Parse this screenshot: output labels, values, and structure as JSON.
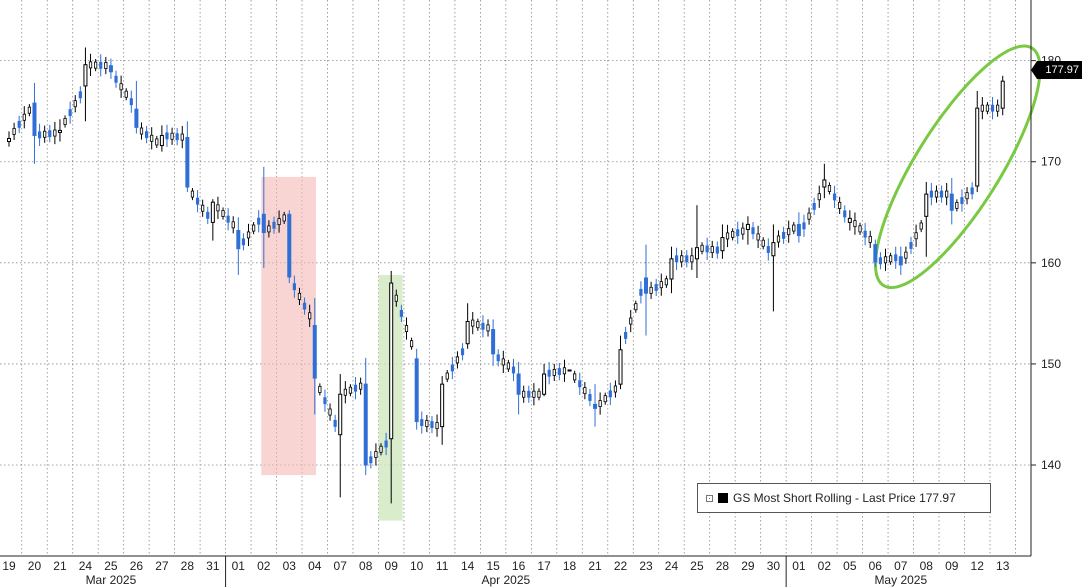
{
  "chart_data": {
    "type": "candlestick",
    "series": [
      {
        "name": "GS Most Short Rolling",
        "ohlc": [
          {
            "d": "19",
            "o": 172.0,
            "h": 173.0,
            "l": 171.5,
            "c": 172.3
          },
          {
            "d": "20",
            "o": 175.8,
            "h": 177.8,
            "l": 169.8,
            "c": 172.6
          },
          {
            "d": "21",
            "o": 172.9,
            "h": 174.2,
            "l": 172.0,
            "c": 173.1
          },
          {
            "d": "24",
            "o": 177.5,
            "h": 181.3,
            "l": 174.0,
            "c": 179.6
          },
          {
            "d": "25",
            "o": 179.5,
            "h": 180.2,
            "l": 178.2,
            "c": 178.9
          },
          {
            "d": "26",
            "o": 175.2,
            "h": 178.0,
            "l": 172.8,
            "c": 173.4
          },
          {
            "d": "27",
            "o": 171.6,
            "h": 173.6,
            "l": 171.0,
            "c": 172.6
          },
          {
            "d": "28",
            "o": 172.4,
            "h": 174.0,
            "l": 167.0,
            "c": 167.5
          },
          {
            "d": "31",
            "o": 164.0,
            "h": 166.3,
            "l": 162.2,
            "c": 166.0
          },
          {
            "d": "01",
            "o": 163.2,
            "h": 164.5,
            "l": 158.8,
            "c": 161.4
          },
          {
            "d": "02",
            "o": 164.8,
            "h": 169.5,
            "l": 159.5,
            "c": 163.0
          },
          {
            "d": "03",
            "o": 164.8,
            "h": 165.2,
            "l": 158.0,
            "c": 158.6
          },
          {
            "d": "04",
            "o": 153.8,
            "h": 156.5,
            "l": 145.0,
            "c": 148.6
          },
          {
            "d": "07",
            "o": 143.0,
            "h": 149.0,
            "l": 136.8,
            "c": 147.0
          },
          {
            "d": "08",
            "o": 148.0,
            "h": 150.6,
            "l": 139.0,
            "c": 140.0
          },
          {
            "d": "09",
            "o": 142.6,
            "h": 159.2,
            "l": 136.2,
            "c": 158.0
          },
          {
            "d": "10",
            "o": 150.5,
            "h": 151.5,
            "l": 143.5,
            "c": 144.3
          },
          {
            "d": "11",
            "o": 143.8,
            "h": 148.8,
            "l": 142.0,
            "c": 148.0
          },
          {
            "d": "14",
            "o": 152.0,
            "h": 156.0,
            "l": 151.5,
            "c": 154.2
          },
          {
            "d": "15",
            "o": 153.4,
            "h": 154.4,
            "l": 149.8,
            "c": 151.0
          },
          {
            "d": "16",
            "o": 149.0,
            "h": 150.2,
            "l": 145.0,
            "c": 147.0
          },
          {
            "d": "17",
            "o": 147.0,
            "h": 150.0,
            "l": 146.8,
            "c": 149.0
          },
          {
            "d": "18",
            "o": 149.4,
            "h": 149.4,
            "l": 149.4,
            "c": 149.4
          },
          {
            "d": "21",
            "o": 146.0,
            "h": 148.0,
            "l": 143.8,
            "c": 145.6
          },
          {
            "d": "22",
            "o": 148.0,
            "h": 152.8,
            "l": 147.5,
            "c": 151.4
          },
          {
            "d": "23",
            "o": 158.5,
            "h": 161.8,
            "l": 152.8,
            "c": 157.0
          },
          {
            "d": "24",
            "o": 158.4,
            "h": 161.6,
            "l": 157.0,
            "c": 160.4
          },
          {
            "d": "25",
            "o": 160.4,
            "h": 165.7,
            "l": 158.5,
            "c": 161.5
          },
          {
            "d": "28",
            "o": 161.2,
            "h": 163.8,
            "l": 160.4,
            "c": 162.5
          },
          {
            "d": "29",
            "o": 163.3,
            "h": 164.6,
            "l": 161.8,
            "c": 163.8
          },
          {
            "d": "30",
            "o": 160.7,
            "h": 163.8,
            "l": 155.2,
            "c": 162.0
          },
          {
            "d": "01",
            "o": 163.8,
            "h": 165.0,
            "l": 162.0,
            "c": 162.7
          },
          {
            "d": "02",
            "o": 167.5,
            "h": 169.8,
            "l": 166.4,
            "c": 168.2
          },
          {
            "d": "05",
            "o": 164.0,
            "h": 165.2,
            "l": 163.2,
            "c": 164.4
          },
          {
            "d": "06",
            "o": 161.8,
            "h": 162.3,
            "l": 159.6,
            "c": 160.1
          },
          {
            "d": "07",
            "o": 160.6,
            "h": 161.6,
            "l": 158.8,
            "c": 159.8
          },
          {
            "d": "08",
            "o": 164.6,
            "h": 168.0,
            "l": 160.6,
            "c": 166.8
          },
          {
            "d": "09",
            "o": 166.8,
            "h": 168.4,
            "l": 163.8,
            "c": 165.2
          },
          {
            "d": "12",
            "o": 167.6,
            "h": 177.0,
            "l": 167.0,
            "c": 175.3
          },
          {
            "d": "13",
            "o": 175.3,
            "h": 178.5,
            "l": 174.6,
            "c": 177.97
          }
        ]
      }
    ],
    "y_ticks": [
      "140",
      "150",
      "160",
      "170",
      "180"
    ],
    "ylim": [
      131,
      186
    ],
    "day_labels": [
      "19",
      "20",
      "21",
      "24",
      "25",
      "26",
      "27",
      "28",
      "31",
      "01",
      "02",
      "03",
      "04",
      "07",
      "08",
      "09",
      "10",
      "11",
      "14",
      "15",
      "16",
      "17",
      "18",
      "21",
      "22",
      "23",
      "24",
      "25",
      "28",
      "29",
      "30",
      "01",
      "02",
      "05",
      "06",
      "07",
      "08",
      "09",
      "12",
      "13"
    ],
    "month_labels": [
      "Mar 2025",
      "Apr 2025",
      "May 2025"
    ],
    "legend": {
      "label": "GS Most Short Rolling - Last Price 177.97",
      "placement": "bottom-right"
    },
    "last_price_tag": "177.97",
    "highlights": [
      {
        "kind": "rectangle",
        "color": "#f4b8b4",
        "from": "02",
        "to": "04",
        "y_range": [
          139,
          168.5
        ]
      },
      {
        "kind": "rectangle",
        "color": "#cfe8c1",
        "from": "09",
        "to": "09",
        "y_range": [
          134.5,
          158.8
        ]
      },
      {
        "kind": "ellipse",
        "color": "#7ac943",
        "from": "07",
        "to": "13"
      }
    ],
    "colors": {
      "up_candle": "#000000",
      "down_candle": "#2f6fd6",
      "gridline": "#8a8a8a",
      "background": "#ffffff"
    },
    "grid": true
  }
}
